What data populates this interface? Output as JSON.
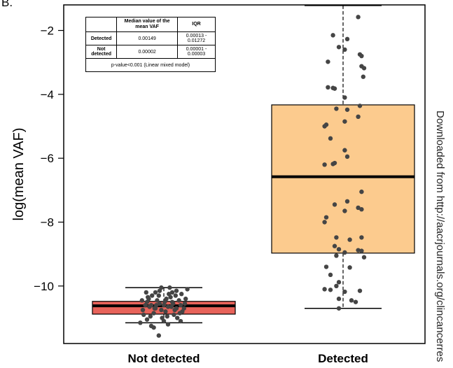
{
  "panel_label": "B.",
  "watermark": "Downloaded from http://aacrjournals.org/clincancerres",
  "stats_table": {
    "headers": [
      "",
      "Median value of the mean VAF",
      "IQR"
    ],
    "rows": [
      {
        "group": "Detected",
        "median": "0.00149",
        "iqr": "0.00013 - 0.01272"
      },
      {
        "group": "Not detected",
        "median": "0.00002",
        "iqr": "0.00001 - 0.00003"
      }
    ],
    "footer": "p-value<0.001 (Linear mixed model)"
  },
  "chart_data": {
    "type": "box",
    "ylabel": "log(mean VAF)",
    "xlabel": "",
    "ylim": [
      -11.8,
      -1.2
    ],
    "yticks": [
      -10,
      -8,
      -6,
      -4,
      -2
    ],
    "ytick_labels": [
      "−10",
      "−8",
      "−6",
      "−4",
      "−2"
    ],
    "categories": [
      "Not detected",
      "Detected"
    ],
    "colors": {
      "Not detected": "#e8635a",
      "Detected": "#fccb8e",
      "points": "#454545"
    },
    "boxes": [
      {
        "name": "Not detected",
        "whisker_low": -11.15,
        "q1": -10.88,
        "median": -10.62,
        "q3": -10.48,
        "whisker_high": -10.05
      },
      {
        "name": "Detected",
        "whisker_low": -10.7,
        "q1": -8.97,
        "median": -6.58,
        "q3": -4.33,
        "whisker_high": -1.22
      }
    ],
    "points": {
      "Not detected": [
        [
          -0.2,
          -10.5
        ],
        [
          -0.15,
          -10.6
        ],
        [
          -0.1,
          -10.7
        ],
        [
          -0.05,
          -10.55
        ],
        [
          0.0,
          -10.6
        ],
        [
          0.05,
          -10.65
        ],
        [
          0.1,
          -10.5
        ],
        [
          0.15,
          -10.7
        ],
        [
          0.2,
          -10.6
        ],
        [
          0.25,
          -10.55
        ],
        [
          -0.25,
          -10.75
        ],
        [
          -0.18,
          -10.4
        ],
        [
          -0.12,
          -10.85
        ],
        [
          -0.08,
          -10.45
        ],
        [
          0.02,
          -10.8
        ],
        [
          0.08,
          -10.35
        ],
        [
          0.12,
          -10.9
        ],
        [
          0.18,
          -10.45
        ],
        [
          0.22,
          -10.8
        ],
        [
          -0.22,
          -10.6
        ],
        [
          -0.16,
          -10.95
        ],
        [
          -0.06,
          -10.3
        ],
        [
          0.04,
          -10.95
        ],
        [
          0.14,
          -10.3
        ],
        [
          0.24,
          -10.7
        ],
        [
          -0.24,
          -10.9
        ],
        [
          -0.14,
          -10.3
        ],
        [
          -0.02,
          -11.0
        ],
        [
          0.06,
          -10.25
        ],
        [
          0.16,
          -11.0
        ],
        [
          -0.2,
          -11.05
        ],
        [
          -0.1,
          -10.2
        ],
        [
          0.0,
          -11.1
        ],
        [
          0.1,
          -10.2
        ],
        [
          0.2,
          -11.1
        ],
        [
          -0.05,
          -10.15
        ],
        [
          0.05,
          -11.2
        ],
        [
          -0.15,
          -11.25
        ],
        [
          0.15,
          -10.15
        ],
        [
          0.28,
          -10.1
        ],
        [
          -0.28,
          -11.15
        ],
        [
          0.26,
          -10.4
        ],
        [
          -0.26,
          -10.45
        ],
        [
          0.03,
          -10.4
        ],
        [
          -0.03,
          -10.75
        ],
        [
          0.09,
          -10.65
        ],
        [
          -0.09,
          -10.6
        ],
        [
          0.19,
          -10.85
        ],
        [
          -0.19,
          -10.35
        ],
        [
          0.11,
          -10.55
        ],
        [
          -0.11,
          -10.7
        ],
        [
          0.01,
          -10.5
        ],
        [
          0.21,
          -10.25
        ],
        [
          -0.21,
          -10.2
        ],
        [
          -0.12,
          -11.3
        ],
        [
          -0.06,
          -11.55
        ],
        [
          0.07,
          -10.05
        ],
        [
          -0.03,
          -10.05
        ],
        [
          0.13,
          -10.75
        ],
        [
          -0.17,
          -10.65
        ]
      ],
      "Detected": [
        [
          0.18,
          -1.58
        ],
        [
          -0.12,
          -2.15
        ],
        [
          0.05,
          -2.27
        ],
        [
          0.02,
          -2.6
        ],
        [
          -0.05,
          -2.52
        ],
        [
          0.2,
          -2.75
        ],
        [
          0.22,
          -2.8
        ],
        [
          -0.18,
          -2.98
        ],
        [
          0.22,
          -3.12
        ],
        [
          0.25,
          -3.18
        ],
        [
          0.24,
          -3.45
        ],
        [
          -0.18,
          -3.78
        ],
        [
          -0.12,
          -3.8
        ],
        [
          -0.1,
          -3.82
        ],
        [
          0.02,
          -4.1
        ],
        [
          0.2,
          -4.36
        ],
        [
          -0.08,
          -4.45
        ],
        [
          0.05,
          -4.48
        ],
        [
          0.18,
          -4.7
        ],
        [
          0.02,
          -4.85
        ],
        [
          -0.2,
          -4.95
        ],
        [
          -0.22,
          -5.0
        ],
        [
          -0.15,
          -5.38
        ],
        [
          0.02,
          -5.75
        ],
        [
          0.05,
          -5.95
        ],
        [
          -0.1,
          -6.15
        ],
        [
          -0.12,
          -6.18
        ],
        [
          -0.22,
          -6.2
        ],
        [
          0.22,
          -7.05
        ],
        [
          0.05,
          -7.35
        ],
        [
          -0.1,
          -7.45
        ],
        [
          0.18,
          -7.55
        ],
        [
          0.22,
          -7.6
        ],
        [
          0.02,
          -7.65
        ],
        [
          -0.2,
          -7.85
        ],
        [
          -0.22,
          -8.0
        ],
        [
          -0.08,
          -8.48
        ],
        [
          0.22,
          -8.48
        ],
        [
          0.08,
          -8.55
        ],
        [
          -0.1,
          -8.75
        ],
        [
          -0.05,
          -8.85
        ],
        [
          0.18,
          -8.88
        ],
        [
          0.22,
          -8.9
        ],
        [
          0.02,
          -8.95
        ],
        [
          -0.08,
          -9.05
        ],
        [
          0.25,
          -9.1
        ],
        [
          -0.2,
          -9.4
        ],
        [
          0.08,
          -9.42
        ],
        [
          -0.15,
          -9.65
        ],
        [
          -0.05,
          -9.88
        ],
        [
          -0.08,
          -10.0
        ],
        [
          -0.22,
          -10.1
        ],
        [
          0.2,
          -10.15
        ],
        [
          -0.15,
          -10.12
        ],
        [
          0.02,
          -10.18
        ],
        [
          -0.05,
          -10.4
        ],
        [
          0.1,
          -10.45
        ],
        [
          0.15,
          -10.5
        ],
        [
          -0.05,
          -10.7
        ]
      ]
    }
  }
}
